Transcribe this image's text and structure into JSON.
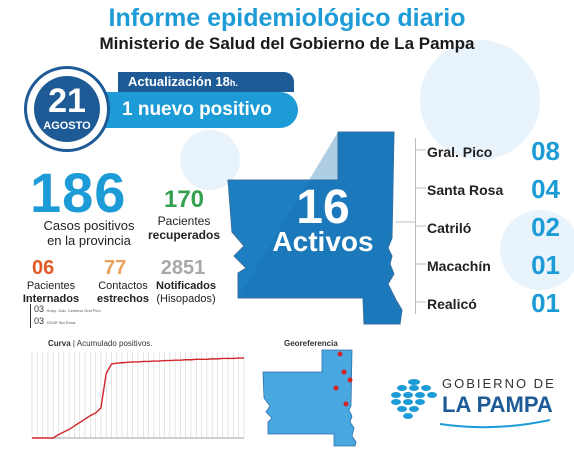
{
  "header": {
    "title": "Informe epidemiológico diario",
    "subtitle": "Ministerio de Salud del Gobierno de La Pampa"
  },
  "update": {
    "day": "21",
    "month": "AGOSTO",
    "label": "Actualización 18",
    "label_suffix": "h.",
    "headline": "1 nuevo positivo"
  },
  "stats": {
    "positives": {
      "value": "186",
      "label_line1": "Casos positivos",
      "label_line2": "en la provincia"
    },
    "recovered": {
      "value": "170",
      "label_line1": "Pacientes",
      "label_line2": "recuperados"
    },
    "hospitalized": {
      "value": "06",
      "label_line1": "Pacientes",
      "label_line2": "Internados"
    },
    "contacts": {
      "value": "77",
      "label_line1": "Contactos",
      "label_line2": "estrechos"
    },
    "tested": {
      "value": "2851",
      "label_line1": "Notificados",
      "label_line2": "(Hisopados)"
    }
  },
  "hospitals": [
    {
      "count": "03",
      "name": "Hosp. Gob. Centeno Gral Pico"
    },
    {
      "count": "03",
      "name": "CEAR Sta Rosa"
    }
  ],
  "active": {
    "value": "16",
    "label": "Activos"
  },
  "localities": [
    {
      "name": "Gral. Pico",
      "count": "08"
    },
    {
      "name": "Santa Rosa",
      "count": "04"
    },
    {
      "name": "Catriló",
      "count": "02"
    },
    {
      "name": "Macachín",
      "count": "01"
    },
    {
      "name": "Realicó",
      "count": "01"
    }
  ],
  "curve": {
    "title_bold": "Curva",
    "title_rest": " | Acumulado positivos."
  },
  "georef": {
    "title": "Georeferencia"
  },
  "logo": {
    "top": "GOBIERNO DE",
    "bottom": "LA PAMPA"
  },
  "colors": {
    "brand_blue": "#1d9bd6",
    "dark_blue": "#1d5a96",
    "green": "#35a050",
    "orange": "#e05a28",
    "curve_red": "#d0262a"
  },
  "chart_data": {
    "type": "line",
    "title": "Curva | Acumulado positivos.",
    "x": [
      0,
      1,
      2,
      3,
      4,
      5,
      6,
      7,
      8,
      9,
      10,
      11,
      12,
      13,
      14,
      15,
      16,
      17,
      18,
      19,
      20,
      21,
      22,
      23,
      24,
      25,
      26,
      27,
      28,
      29,
      30,
      31,
      32,
      33,
      34,
      35,
      36,
      37,
      38,
      39,
      40
    ],
    "series": [
      {
        "values": [
          0,
          0,
          0,
          0,
          0,
          8,
          14,
          20,
          28,
          36,
          44,
          52,
          58,
          70,
          150,
          172,
          174,
          175,
          176,
          177,
          177,
          178,
          178,
          179,
          179,
          180,
          180,
          181,
          181,
          182,
          182,
          183,
          183,
          183,
          184,
          184,
          185,
          185,
          185,
          186,
          186
        ]
      }
    ],
    "ylim": [
      0,
      200
    ],
    "grid": true
  }
}
